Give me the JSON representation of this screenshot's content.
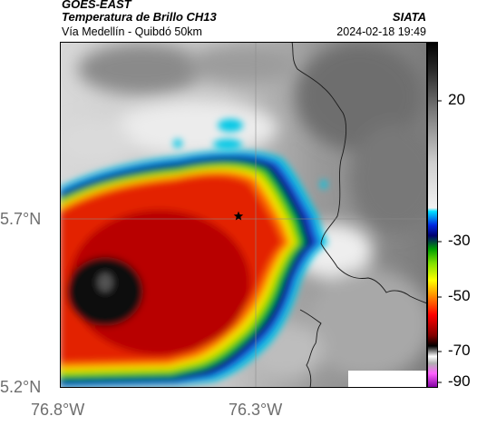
{
  "header": {
    "satellite": "GOES-EAST",
    "product": "Temperatura de Brillo CH13",
    "region": "Vía Medellín - Quibdó 50km",
    "organization": "SIATA",
    "timestamp": "2024-02-18 19:49"
  },
  "map": {
    "lat_ticks": [
      "5.7°N",
      "5.2°N"
    ],
    "lon_ticks": [
      "76.8°W",
      "76.3°W"
    ],
    "marker": "star-marker",
    "colors": {
      "cold_core": "#0a0a0a",
      "deep_red": "#c00000",
      "red": "#e32000",
      "orange": "#ff6a00",
      "yellow": "#f0e600",
      "green": "#00c800",
      "cyan": "#00c8e6",
      "navy": "#000066",
      "grey_warm": "#7a7a7a",
      "grey_light": "#e6e6e6"
    }
  },
  "colorbar": {
    "tick_labels": [
      "20",
      "-30",
      "-50",
      "-70",
      "-90"
    ]
  }
}
